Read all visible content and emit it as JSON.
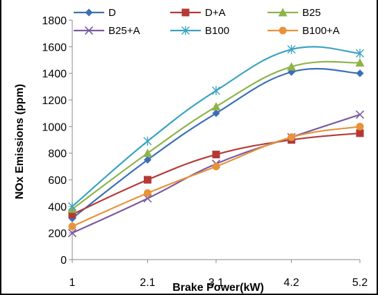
{
  "chart_data": {
    "type": "line",
    "title": "",
    "xlabel": "Brake Power(kW)",
    "ylabel": "NOx Emissions (ppm)",
    "x": [
      1,
      2.1,
      3.1,
      4.2,
      5.2
    ],
    "x_tick_labels": [
      "1",
      "2.1",
      "3.1",
      "4.2",
      "5.2"
    ],
    "ylim": [
      0,
      1800
    ],
    "y_ticks": [
      0,
      200,
      400,
      600,
      800,
      1000,
      1200,
      1400,
      1600,
      1800
    ],
    "grid": false,
    "legend_position": "top",
    "series": [
      {
        "name": "D",
        "values": [
          310,
          750,
          1100,
          1410,
          1400
        ],
        "color": "#3a6fb7",
        "marker": "diamond"
      },
      {
        "name": "D+A",
        "values": [
          340,
          600,
          790,
          900,
          950
        ],
        "color": "#b33a35",
        "marker": "square"
      },
      {
        "name": "B25",
        "values": [
          380,
          800,
          1150,
          1450,
          1480
        ],
        "color": "#8fb34a",
        "marker": "triangle"
      },
      {
        "name": "B25+A",
        "values": [
          200,
          460,
          720,
          920,
          1090
        ],
        "color": "#7a5a9e",
        "marker": "x"
      },
      {
        "name": "B100",
        "values": [
          400,
          890,
          1270,
          1580,
          1550
        ],
        "color": "#3aa3c0",
        "marker": "star"
      },
      {
        "name": "B100+A",
        "values": [
          250,
          500,
          700,
          920,
          1000
        ],
        "color": "#e8923a",
        "marker": "circle"
      }
    ]
  }
}
